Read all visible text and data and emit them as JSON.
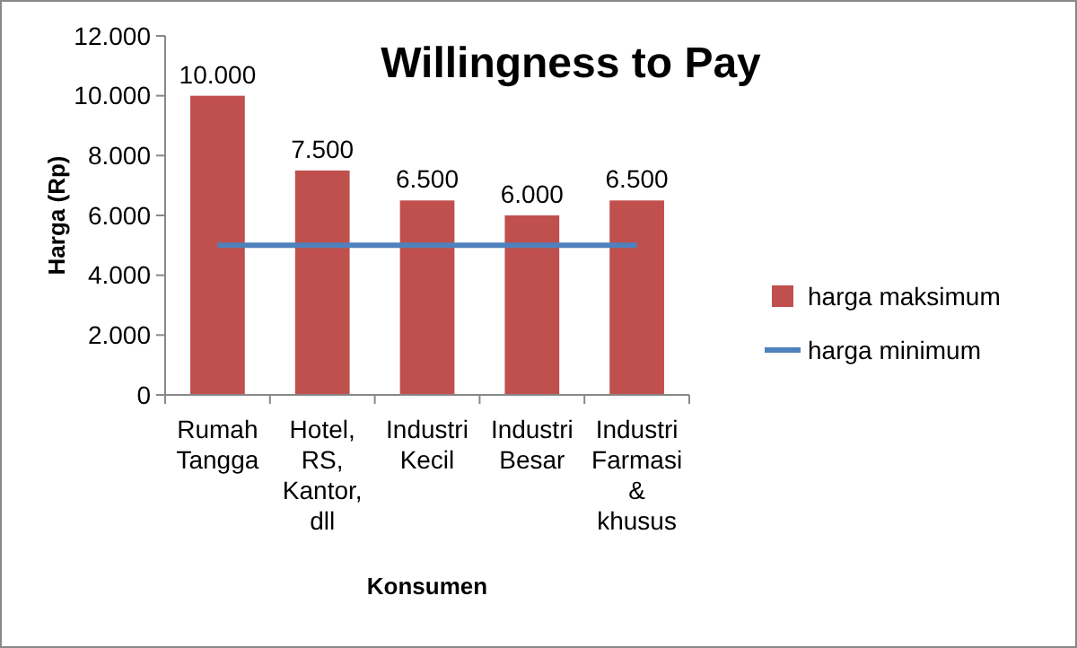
{
  "chart_data": {
    "type": "bar",
    "title": "Willingness to Pay",
    "xlabel": "Konsumen",
    "ylabel": "Harga (Rp)",
    "categories": [
      "Rumah Tangga",
      "Hotel, RS, Kantor, dll",
      "Industri Kecil",
      "Industri Besar",
      "Industri Farmasi & khusus"
    ],
    "series": [
      {
        "name": "harga maksimum",
        "color": "#c0504d",
        "values": [
          10000,
          7500,
          6500,
          6000,
          6500
        ],
        "value_labels": [
          "10.000",
          "7.500",
          "6.500",
          "6.000",
          "6.500"
        ]
      },
      {
        "name": "harga minimum",
        "type": "line",
        "color": "#4f81bd",
        "values": [
          5000,
          5000,
          5000,
          5000,
          5000
        ]
      }
    ],
    "ylim": [
      0,
      12000
    ],
    "yticks": [
      0,
      {
        "value": 2000,
        "label": "2.000"
      },
      {
        "value": 4000,
        "label": "4.000"
      },
      {
        "value": 6000,
        "label": "6.000"
      },
      {
        "value": 8000,
        "label": "8.000"
      },
      {
        "value": 10000,
        "label": "10.000"
      },
      {
        "value": 12000,
        "label": "12.000"
      }
    ],
    "grid": false,
    "legend": "right",
    "marker": "none"
  }
}
